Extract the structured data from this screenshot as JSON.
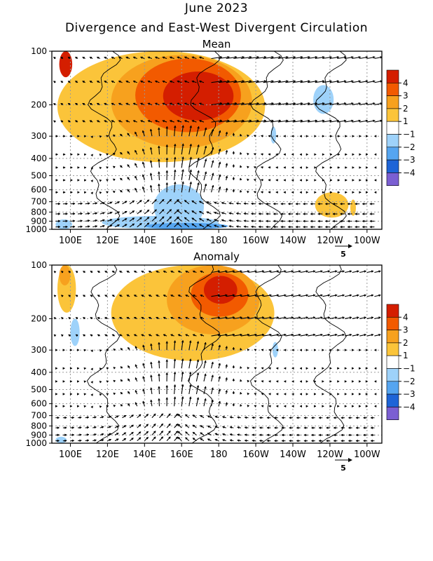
{
  "header": {
    "title": "June 2023",
    "subtitle": "Divergence and East-West Divergent Circulation"
  },
  "colors": {
    "pos4": "#d41e00",
    "pos3": "#f25a00",
    "pos2": "#f7a11e",
    "pos1": "#fbc43a",
    "neg1": "#9ed2fa",
    "neg2": "#55a5f0",
    "neg3": "#1e64d7",
    "neg4": "#7b5fd2"
  },
  "chart_data": [
    {
      "type": "heatmap",
      "title": "Mean",
      "x_ticks": [
        "100E",
        "120E",
        "140E",
        "160E",
        "180",
        "160W",
        "140W",
        "120W",
        "100W"
      ],
      "y_ticks": [
        "100",
        "200",
        "300",
        "400",
        "500",
        "600",
        "700",
        "800",
        "900",
        "1000"
      ],
      "y_scale": "log (pressure, reversed)",
      "colorbar": {
        "levels": [
          "4",
          "3",
          "2",
          "1",
          "-1",
          "-2",
          "-3",
          "-4"
        ],
        "display_labels": [
          "4",
          "3",
          "2",
          "1",
          "−1",
          "−2",
          "−3",
          "−4"
        ]
      },
      "vector_scale_label": "5",
      "blobs": [
        {
          "level": 1,
          "lon": [
            93,
            205
          ],
          "p": [
            100,
            420
          ]
        },
        {
          "level": 2,
          "lon": [
            122,
            198
          ],
          "p": [
            105,
            350
          ]
        },
        {
          "level": 3,
          "lon": [
            135,
            192
          ],
          "p": [
            110,
            285
          ]
        },
        {
          "level": 4,
          "lon": [
            150,
            188
          ],
          "p": [
            130,
            245
          ]
        },
        {
          "level": 4,
          "lon": [
            94,
            101
          ],
          "p": [
            100,
            140
          ]
        },
        {
          "level": 1,
          "lon": [
            232,
            250
          ],
          "p": [
            620,
            860
          ]
        },
        {
          "level": 1,
          "lon": [
            251,
            254
          ],
          "p": [
            680,
            840
          ]
        },
        {
          "level": -1,
          "lon": [
            231,
            242
          ],
          "p": [
            155,
            225
          ]
        },
        {
          "level": -1,
          "lon": [
            145,
            172
          ],
          "p": [
            560,
            1000
          ]
        },
        {
          "level": -1,
          "lon": [
            117,
            180
          ],
          "p": [
            840,
            1000
          ]
        },
        {
          "level": -2,
          "lon": [
            140,
            185
          ],
          "p": [
            920,
            1000
          ]
        },
        {
          "level": -1,
          "lon": [
            92,
            101
          ],
          "p": [
            880,
            1000
          ]
        },
        {
          "level": -1,
          "lon": [
            208,
            211
          ],
          "p": [
            265,
            330
          ]
        }
      ]
    },
    {
      "type": "heatmap",
      "title": "Anomaly",
      "x_ticks": [
        "100E",
        "120E",
        "140E",
        "160E",
        "180",
        "160W",
        "140W",
        "120W",
        "100W"
      ],
      "y_ticks": [
        "100",
        "200",
        "300",
        "400",
        "500",
        "600",
        "700",
        "800",
        "900",
        "1000"
      ],
      "y_scale": "log (pressure, reversed)",
      "colorbar": {
        "levels": [
          "4",
          "3",
          "2",
          "1",
          "-1",
          "-2",
          "-3",
          "-4"
        ],
        "display_labels": [
          "4",
          "3",
          "2",
          "1",
          "−1",
          "−2",
          "−3",
          "−4"
        ]
      },
      "vector_scale_label": "5",
      "blobs": [
        {
          "level": 1,
          "lon": [
            93,
            103
          ],
          "p": [
            100,
            185
          ]
        },
        {
          "level": 1,
          "lon": [
            122,
            210
          ],
          "p": [
            100,
            345
          ]
        },
        {
          "level": 2,
          "lon": [
            152,
            202
          ],
          "p": [
            100,
            245
          ]
        },
        {
          "level": 3,
          "lon": [
            165,
            196
          ],
          "p": [
            110,
            195
          ]
        },
        {
          "level": 4,
          "lon": [
            172,
            190
          ],
          "p": [
            115,
            165
          ]
        },
        {
          "level": 2,
          "lon": [
            94,
            100
          ],
          "p": [
            100,
            130
          ]
        },
        {
          "level": -1,
          "lon": [
            100,
            105
          ],
          "p": [
            200,
            285
          ]
        },
        {
          "level": -1,
          "lon": [
            209,
            212
          ],
          "p": [
            270,
            330
          ]
        },
        {
          "level": -1,
          "lon": [
            92,
            98
          ],
          "p": [
            920,
            1000
          ]
        }
      ]
    }
  ]
}
